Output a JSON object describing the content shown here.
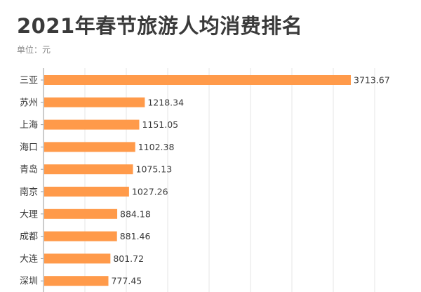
{
  "title": "2021年春节旅游人均消费排名",
  "unit_label": "单位：元",
  "colors": {
    "bar": "#ff9a4a",
    "axis": "#9a9a9a",
    "grid": "#e6e6e6",
    "label": "#3a3a3a"
  },
  "chart_data": {
    "type": "bar",
    "orientation": "horizontal",
    "title": "2021年春节旅游人均消费排名",
    "xlabel": "",
    "ylabel": "",
    "unit": "元",
    "categories": [
      "三亚",
      "苏州",
      "上海",
      "海口",
      "青岛",
      "南京",
      "大理",
      "成都",
      "大连",
      "深圳"
    ],
    "values": [
      3713.67,
      1218.34,
      1151.05,
      1102.38,
      1075.13,
      1027.26,
      884.18,
      881.46,
      801.72,
      777.45
    ],
    "value_labels": [
      "3713.67",
      "1218.34",
      "1151.05",
      "1102.38",
      "1075.13",
      "1027.26",
      "884.18",
      "881.46",
      "801.72",
      "777.45"
    ],
    "xlim": [
      0,
      3800
    ],
    "grid": true,
    "legend": "none"
  }
}
